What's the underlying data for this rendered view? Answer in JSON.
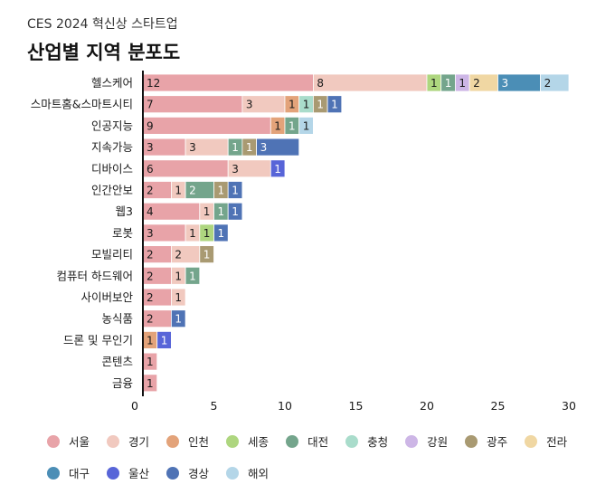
{
  "header": {
    "subtitle": "CES 2024 혁신상 스타트업",
    "title": "산업별 지역 분포도"
  },
  "chart_data": {
    "type": "bar",
    "orientation": "horizontal",
    "stacked": true,
    "title": "산업별 지역 분포도",
    "subtitle": "CES 2024 혁신상 스타트업",
    "xlim": [
      0,
      30
    ],
    "xticks": [
      0,
      5,
      10,
      15,
      20,
      25,
      30
    ],
    "grid": false,
    "legend_position": "bottom",
    "categories": [
      "헬스케어",
      "스마트홈&스마트시티",
      "인공지능",
      "지속가능",
      "디바이스",
      "인간안보",
      "웹3",
      "로봇",
      "모빌리티",
      "컴퓨터 하드웨어",
      "사이버보안",
      "농식품",
      "드론 및 무인기",
      "콘텐츠",
      "금융"
    ],
    "series": [
      {
        "name": "서울",
        "color": "#e8a3a8",
        "values": [
          12,
          7,
          9,
          3,
          6,
          2,
          4,
          3,
          2,
          2,
          2,
          2,
          0,
          1,
          1
        ]
      },
      {
        "name": "경기",
        "color": "#f1c9bf",
        "values": [
          8,
          3,
          0,
          3,
          3,
          1,
          1,
          1,
          2,
          1,
          1,
          0,
          0,
          0,
          0
        ]
      },
      {
        "name": "인천",
        "color": "#e3a37a",
        "values": [
          0,
          1,
          1,
          0,
          0,
          0,
          0,
          0,
          0,
          0,
          0,
          0,
          1,
          0,
          0
        ]
      },
      {
        "name": "세종",
        "color": "#aed67f",
        "values": [
          1,
          0,
          0,
          0,
          0,
          0,
          0,
          1,
          0,
          0,
          0,
          0,
          0,
          0,
          0
        ]
      },
      {
        "name": "대전",
        "color": "#74a58c",
        "values": [
          1,
          0,
          1,
          1,
          0,
          2,
          1,
          0,
          0,
          1,
          0,
          0,
          0,
          0,
          0
        ]
      },
      {
        "name": "충청",
        "color": "#a9dccb",
        "values": [
          0,
          1,
          0,
          0,
          0,
          0,
          0,
          0,
          0,
          0,
          0,
          0,
          0,
          0,
          0
        ]
      },
      {
        "name": "강원",
        "color": "#cdb6e6",
        "values": [
          1,
          0,
          0,
          0,
          0,
          0,
          0,
          0,
          0,
          0,
          0,
          0,
          0,
          0,
          0
        ]
      },
      {
        "name": "광주",
        "color": "#a99a72",
        "values": [
          0,
          1,
          0,
          1,
          0,
          1,
          0,
          0,
          1,
          0,
          0,
          0,
          0,
          0,
          0
        ]
      },
      {
        "name": "전라",
        "color": "#f0d7a3",
        "values": [
          2,
          0,
          0,
          0,
          0,
          0,
          0,
          0,
          0,
          0,
          0,
          0,
          0,
          0,
          0
        ]
      },
      {
        "name": "대구",
        "color": "#4b8eb6",
        "values": [
          3,
          0,
          0,
          0,
          0,
          0,
          0,
          0,
          0,
          0,
          0,
          0,
          0,
          0,
          0
        ]
      },
      {
        "name": "울산",
        "color": "#5865d8",
        "values": [
          0,
          0,
          0,
          0,
          1,
          0,
          0,
          0,
          0,
          0,
          0,
          0,
          1,
          0,
          0
        ]
      },
      {
        "name": "경상",
        "color": "#4f73b5",
        "values": [
          0,
          1,
          0,
          3,
          0,
          1,
          1,
          1,
          0,
          0,
          0,
          1,
          0,
          0,
          0
        ]
      },
      {
        "name": "해외",
        "color": "#b4d6e8",
        "values": [
          2,
          0,
          1,
          0,
          0,
          0,
          0,
          0,
          0,
          0,
          0,
          0,
          0,
          0,
          0
        ]
      }
    ]
  }
}
